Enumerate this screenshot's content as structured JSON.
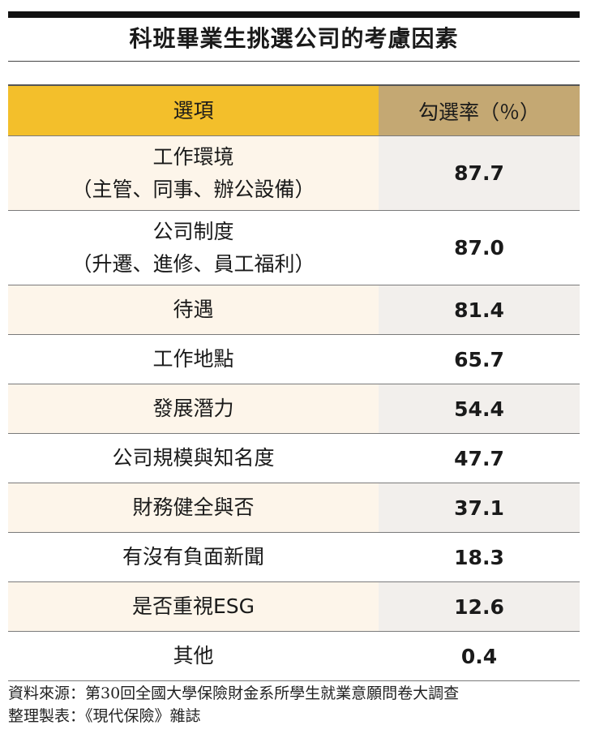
{
  "title": "科班畢業生挑選公司的考慮因素",
  "table": {
    "header": {
      "label": "選項",
      "value": "勾選率（％）"
    },
    "rows": [
      {
        "label": "工作環境",
        "sublabel": "（主管、同事、辦公設備）",
        "value": "87.7"
      },
      {
        "label": "公司制度",
        "sublabel": "（升遷、進修、員工福利）",
        "value": "87.0"
      },
      {
        "label": "待遇",
        "value": "81.4"
      },
      {
        "label": "工作地點",
        "value": "65.7"
      },
      {
        "label": "發展潛力",
        "value": "54.4"
      },
      {
        "label": "公司規模與知名度",
        "value": "47.7"
      },
      {
        "label": "財務健全與否",
        "value": "37.1"
      },
      {
        "label": "有沒有負面新聞",
        "value": "18.3"
      },
      {
        "label": "是否重視ESG",
        "value": "12.6"
      },
      {
        "label": "其他",
        "value": "0.4"
      }
    ]
  },
  "footnote": {
    "source": "資料來源：第30回全國大學保險財金系所學生就業意願問卷大調查",
    "compiled": "整理製表：《現代保險》雜誌"
  },
  "colors": {
    "header_left": "#f3bf2b",
    "header_right": "#c4a873",
    "shade_left": "#fdf5ea",
    "shade_right": "#f2efec"
  }
}
